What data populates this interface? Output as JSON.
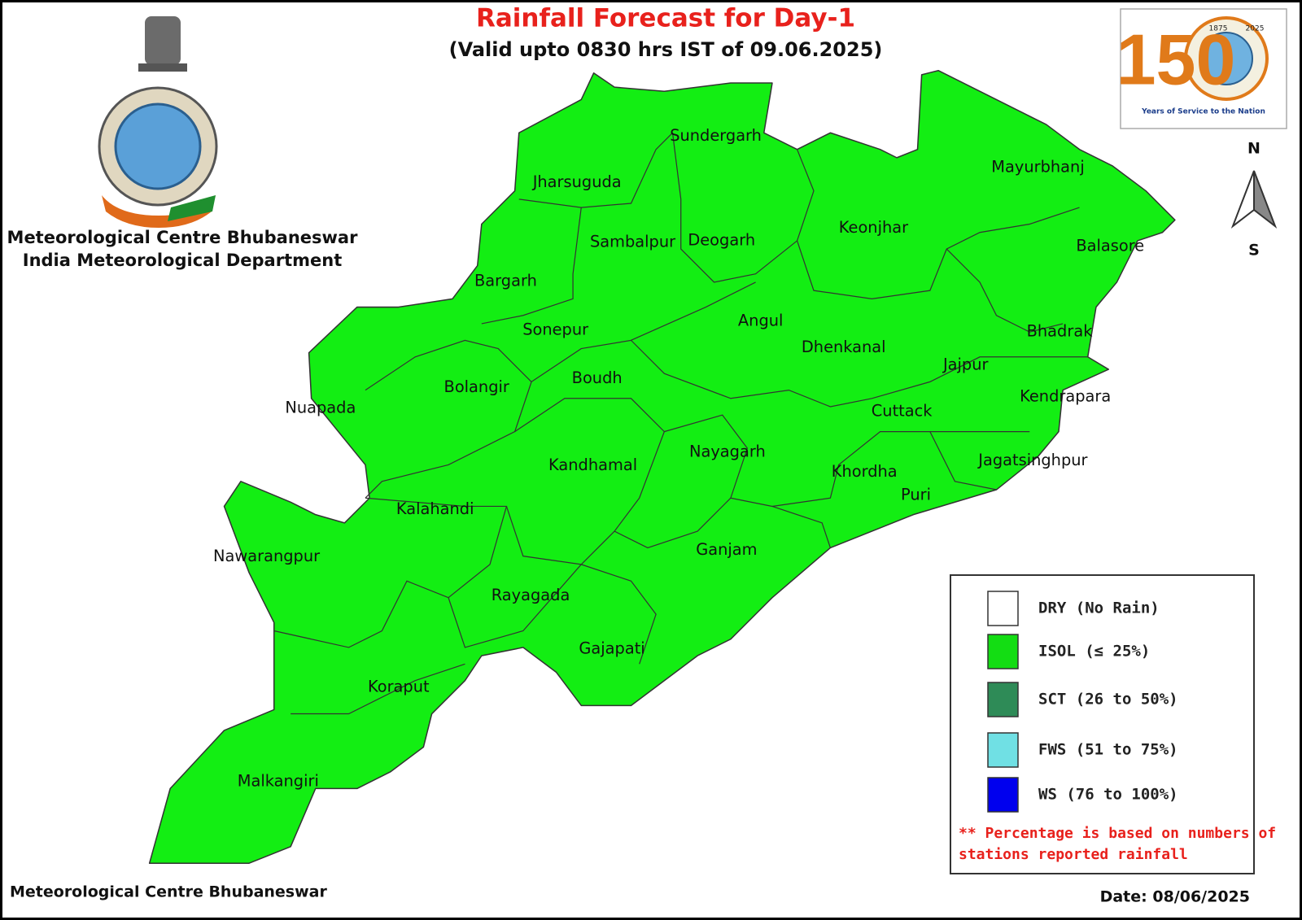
{
  "header": {
    "title": "Rainfall Forecast for Day-1",
    "subtitle": "(Valid upto 0830 hrs IST of 09.06.2025)"
  },
  "organization": {
    "line1": "Meteorological Centre Bhubaneswar",
    "line2": "India Meteorological Department"
  },
  "anniversary_logo": {
    "number": "150",
    "years": [
      "1875",
      "2025"
    ],
    "tagline": "Years of Service to the Nation"
  },
  "compass": {
    "north": "N",
    "south": "S"
  },
  "map": {
    "fill": "#13ee13",
    "border": "#333333"
  },
  "districts": [
    "Sundergarh",
    "Jharsuguda",
    "Mayurbhanj",
    "Sambalpur",
    "Deogarh",
    "Keonjhar",
    "Balasore",
    "Bargarh",
    "Sonepur",
    "Angul",
    "Bhadrak",
    "Dhenkanal",
    "Jajpur",
    "Bolangir",
    "Boudh",
    "Nuapada",
    "Cuttack",
    "Kendrapara",
    "Nayagarh",
    "Kandhamal",
    "Jagatsinghpur",
    "Khordha",
    "Puri",
    "Kalahandi",
    "Ganjam",
    "Nawarangpur",
    "Rayagada",
    "Gajapati",
    "Koraput",
    "Malkangiri"
  ],
  "legend": {
    "items": [
      {
        "label": "DRY (No Rain)",
        "color": "#ffffff"
      },
      {
        "label": "ISOL (≤ 25%)",
        "color": "#13dd13"
      },
      {
        "label": "SCT (26 to 50%)",
        "color": "#2e8b57"
      },
      {
        "label": "FWS (51 to 75%)",
        "color": "#70e0e4"
      },
      {
        "label": "WS (76 to 100%)",
        "color": "#0000ee"
      }
    ],
    "note": [
      "** Percentage is based on numbers of",
      "stations reported rainfall"
    ]
  },
  "footer": {
    "source": "Meteorological Centre Bhubaneswar",
    "date": "Date: 08/06/2025"
  }
}
